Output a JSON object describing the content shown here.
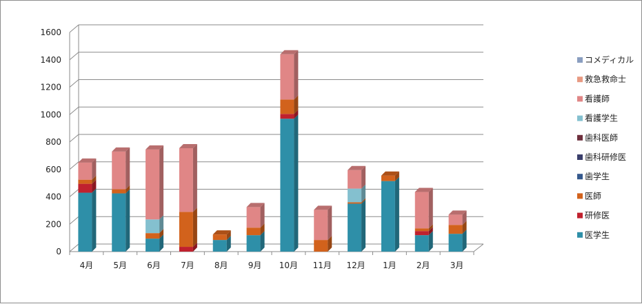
{
  "chart_data": {
    "type": "bar",
    "stacked": true,
    "style": "3d-column",
    "categories": [
      "4月",
      "5月",
      "6月",
      "7月",
      "8月",
      "9月",
      "10月",
      "11月",
      "12月",
      "1月",
      "2月",
      "3月"
    ],
    "ylim": [
      0,
      1600
    ],
    "yticks": [
      0,
      200,
      400,
      600,
      800,
      1000,
      1200,
      1400,
      1600
    ],
    "grid": true,
    "legend_position": "right",
    "series": [
      {
        "name": "医学生",
        "color": "#2e8fa8",
        "values": [
          430,
          425,
          95,
          0,
          85,
          120,
          970,
          0,
          350,
          515,
          120,
          130
        ]
      },
      {
        "name": "研修医",
        "color": "#c0212e",
        "values": [
          65,
          0,
          0,
          35,
          0,
          0,
          35,
          0,
          0,
          0,
          30,
          0
        ]
      },
      {
        "name": "医師",
        "color": "#d2621c",
        "values": [
          30,
          30,
          40,
          255,
          40,
          55,
          105,
          85,
          10,
          40,
          20,
          65
        ]
      },
      {
        "name": "歯学生",
        "color": "#35598d",
        "values": [
          0,
          0,
          0,
          0,
          0,
          0,
          0,
          0,
          0,
          0,
          0,
          0
        ]
      },
      {
        "name": "歯科研修医",
        "color": "#3a3e6b",
        "values": [
          0,
          0,
          0,
          0,
          0,
          0,
          0,
          0,
          0,
          0,
          0,
          0
        ]
      },
      {
        "name": "歯科医師",
        "color": "#6e2f3d",
        "values": [
          0,
          0,
          0,
          0,
          0,
          0,
          0,
          0,
          0,
          0,
          0,
          0
        ]
      },
      {
        "name": "看護学生",
        "color": "#84c0cf",
        "values": [
          0,
          0,
          100,
          0,
          0,
          0,
          0,
          0,
          100,
          0,
          0,
          0
        ]
      },
      {
        "name": "看護師",
        "color": "#e08686",
        "values": [
          125,
          275,
          510,
          465,
          0,
          150,
          330,
          220,
          135,
          0,
          265,
          75
        ]
      },
      {
        "name": "救急救命士",
        "color": "#e89a82",
        "values": [
          0,
          0,
          0,
          0,
          0,
          0,
          0,
          0,
          0,
          0,
          0,
          0
        ]
      },
      {
        "name": "コメディカル",
        "color": "#8a9ec0",
        "values": [
          0,
          0,
          0,
          0,
          0,
          0,
          0,
          0,
          0,
          0,
          0,
          0
        ]
      }
    ],
    "legend_order": [
      "コメディカル",
      "救急救命士",
      "看護師",
      "看護学生",
      "歯科医師",
      "歯科研修医",
      "歯学生",
      "医師",
      "研修医",
      "医学生"
    ]
  }
}
